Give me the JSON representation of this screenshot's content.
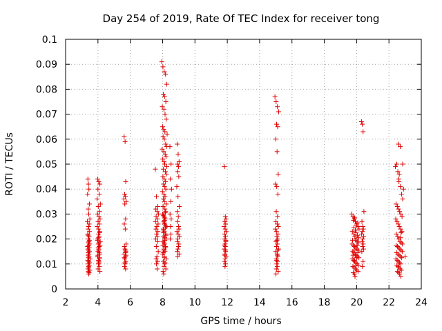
{
  "chart_data": {
    "type": "scatter",
    "title": "Day 254 of 2019, Rate Of TEC Index for receiver tong",
    "xlabel": "GPS time / hours",
    "ylabel": "ROTI / TECUs",
    "xlim": [
      2,
      24
    ],
    "ylim": [
      0,
      0.1
    ],
    "xticks": [
      "2",
      "4",
      "6",
      "8",
      "10",
      "12",
      "14",
      "16",
      "18",
      "20",
      "22",
      "24"
    ],
    "yticks": [
      "0",
      "0.01",
      "0.02",
      "0.03",
      "0.04",
      "0.05",
      "0.06",
      "0.07",
      "0.08",
      "0.09",
      "0.1"
    ],
    "grid": true,
    "marker": "+",
    "color": "#e00000",
    "series": [
      {
        "name": "ROTI",
        "x": [
          3.38,
          3.41,
          3.44,
          3.36,
          3.47,
          3.4,
          3.43,
          3.5,
          3.35,
          3.46,
          3.42,
          3.39,
          3.48,
          3.37,
          3.45,
          3.41,
          3.44,
          3.4,
          3.49,
          3.43,
          3.36,
          3.46,
          3.38,
          3.42,
          3.47,
          3.4,
          3.44,
          3.39,
          3.45,
          3.41,
          3.52,
          3.37,
          3.43,
          3.48,
          3.4,
          3.46,
          3.42,
          3.44,
          3.38,
          3.5,
          3.41,
          3.45,
          3.43,
          3.39,
          3.47,
          3.98,
          4.05,
          4.12,
          4.0,
          4.08,
          3.95,
          4.15,
          4.02,
          4.1,
          3.97,
          4.06,
          4.13,
          4.01,
          4.09,
          3.96,
          4.04,
          4.11,
          4.03,
          4.07,
          3.99,
          4.14,
          4.02,
          4.08,
          4.05,
          4.0,
          4.12,
          3.98,
          4.1,
          4.06,
          4.03,
          4.09,
          4.01,
          4.11,
          4.04,
          3.97,
          4.07,
          4.13,
          4.02,
          4.05,
          4.08,
          4.0,
          4.1,
          4.03,
          4.06,
          4.12,
          5.62,
          5.68,
          5.72,
          5.65,
          5.7,
          5.6,
          5.75,
          5.66,
          5.71,
          5.63,
          5.69,
          5.74,
          5.64,
          5.67,
          5.73,
          5.61,
          5.7,
          5.66,
          5.72,
          5.68,
          5.65,
          5.71,
          5.69,
          5.63,
          5.67,
          5.74,
          5.7,
          7.55,
          7.62,
          7.7,
          7.58,
          7.66,
          7.74,
          7.6,
          7.68,
          7.56,
          7.72,
          7.64,
          7.59,
          7.71,
          7.63,
          7.67,
          7.57,
          7.69,
          7.61,
          7.73,
          7.65,
          7.6,
          7.7,
          7.62,
          7.66,
          7.95,
          8.02,
          8.1,
          8.18,
          8.25,
          8.05,
          8.12,
          8.2,
          7.98,
          8.08,
          8.15,
          8.22,
          8.0,
          8.06,
          8.14,
          8.28,
          8.03,
          8.11,
          8.19,
          8.24,
          7.97,
          8.07,
          8.16,
          8.21,
          8.01,
          8.09,
          8.13,
          8.26,
          8.04,
          8.17,
          8.23,
          8.02,
          8.1,
          8.18,
          8.06,
          8.12,
          8.2,
          7.99,
          8.08,
          8.15,
          8.05,
          8.11,
          8.22,
          8.03,
          8.14,
          8.19,
          8.0,
          8.09,
          8.16,
          8.07,
          8.13,
          8.25,
          8.04,
          8.1,
          8.18,
          8.06,
          8.21,
          8.02,
          8.12,
          8.17,
          8.08,
          8.15,
          8.01,
          8.11,
          8.23,
          8.05,
          8.14,
          8.09,
          8.2,
          8.03,
          8.07,
          8.16,
          8.12,
          8.1,
          8.18,
          8.06,
          8.13,
          8.08,
          8.19,
          8.04,
          8.11,
          8.15,
          8.09,
          8.02,
          8.14,
          8.21,
          8.07,
          8.17,
          8.12,
          8.05,
          8.45,
          8.52,
          8.48,
          8.55,
          8.5,
          8.46,
          8.53,
          8.49,
          8.51,
          8.47,
          8.9,
          8.96,
          9.02,
          8.92,
          8.98,
          8.94,
          9.0,
          8.88,
          8.95,
          9.03,
          8.91,
          8.97,
          8.93,
          8.99,
          9.01,
          8.89,
          8.96,
          9.04,
          8.94,
          8.92,
          9.0,
          8.98,
          8.95,
          8.9,
          9.02,
          8.93,
          11.82,
          11.88,
          11.92,
          11.85,
          11.9,
          11.8,
          11.87,
          11.93,
          11.84,
          11.89,
          11.83,
          11.91,
          11.86,
          11.88,
          11.81,
          11.9,
          11.85,
          11.92,
          11.87,
          11.84,
          11.89,
          11.86,
          11.91,
          11.83,
          11.88,
          11.85,
          14.95,
          15.02,
          15.1,
          15.18,
          15.05,
          15.12,
          15.0,
          15.08,
          15.15,
          14.98,
          15.06,
          15.13,
          15.03,
          15.11,
          15.01,
          15.09,
          15.16,
          14.97,
          15.04,
          15.14,
          15.07,
          15.12,
          15.02,
          15.1,
          15.05,
          15.17,
          15.0,
          15.08,
          15.13,
          15.03,
          15.11,
          15.06,
          15.09,
          15.04,
          15.15,
          15.01,
          15.07,
          15.12,
          15.1,
          15.05,
          19.7,
          19.78,
          19.85,
          19.92,
          20.0,
          20.08,
          20.15,
          19.74,
          19.82,
          19.89,
          19.96,
          20.04,
          20.12,
          19.72,
          19.8,
          19.87,
          19.94,
          20.02,
          20.1,
          19.76,
          19.84,
          19.91,
          19.98,
          20.06,
          20.14,
          19.73,
          19.81,
          19.88,
          19.95,
          20.03,
          20.11,
          19.77,
          19.85,
          19.93,
          20.01,
          20.09,
          19.79,
          19.86,
          19.9,
          19.97,
          20.05,
          20.13,
          19.75,
          19.83,
          19.92,
          19.99,
          20.07,
          19.81,
          19.88,
          19.94,
          20.02,
          20.1,
          19.78,
          19.86,
          19.96,
          20.04,
          19.84,
          19.91,
          20.0,
          20.08,
          20.3,
          20.35,
          20.4,
          20.45,
          20.33,
          20.38,
          20.42,
          20.36,
          20.31,
          20.44,
          20.39,
          20.34,
          20.41,
          20.37,
          20.43,
          20.32,
          20.4,
          20.36,
          22.4,
          22.48,
          22.55,
          22.62,
          22.7,
          22.78,
          22.85,
          22.44,
          22.52,
          22.59,
          22.66,
          22.74,
          22.81,
          22.42,
          22.5,
          22.57,
          22.64,
          22.72,
          22.8,
          22.46,
          22.54,
          22.61,
          22.68,
          22.76,
          22.83,
          22.45,
          22.53,
          22.6,
          22.67,
          22.75,
          22.82,
          22.47,
          22.55,
          22.63,
          22.71,
          22.79,
          22.43,
          22.51,
          22.58,
          22.65,
          22.73,
          22.49,
          22.56,
          22.62,
          22.69,
          22.77,
          22.52,
          22.59,
          22.66,
          22.74,
          22.58,
          22.7,
          22.64,
          22.61,
          22.85,
          22.9,
          23.0,
          22.75,
          22.72
        ],
        "y": [
          0.044,
          0.042,
          0.04,
          0.038,
          0.034,
          0.032,
          0.03,
          0.028,
          0.027,
          0.026,
          0.025,
          0.024,
          0.023,
          0.022,
          0.021,
          0.02,
          0.019,
          0.0185,
          0.018,
          0.0175,
          0.017,
          0.0165,
          0.016,
          0.0155,
          0.015,
          0.0145,
          0.014,
          0.0135,
          0.013,
          0.0125,
          0.012,
          0.0115,
          0.011,
          0.0105,
          0.01,
          0.0095,
          0.009,
          0.0085,
          0.008,
          0.0075,
          0.007,
          0.0065,
          0.006,
          0.0215,
          0.0195,
          0.044,
          0.043,
          0.042,
          0.04,
          0.038,
          0.036,
          0.034,
          0.033,
          0.031,
          0.03,
          0.029,
          0.028,
          0.027,
          0.026,
          0.025,
          0.024,
          0.023,
          0.022,
          0.021,
          0.02,
          0.019,
          0.018,
          0.017,
          0.016,
          0.015,
          0.014,
          0.013,
          0.012,
          0.011,
          0.01,
          0.009,
          0.008,
          0.0225,
          0.0205,
          0.0195,
          0.0185,
          0.0175,
          0.0165,
          0.0155,
          0.0145,
          0.0135,
          0.0125,
          0.0115,
          0.0105,
          0.007,
          0.061,
          0.059,
          0.043,
          0.038,
          0.037,
          0.036,
          0.035,
          0.034,
          0.028,
          0.026,
          0.024,
          0.018,
          0.017,
          0.016,
          0.015,
          0.014,
          0.013,
          0.012,
          0.011,
          0.01,
          0.009,
          0.008,
          0.0155,
          0.0125,
          0.0105,
          0.0135,
          0.0145,
          0.048,
          0.037,
          0.033,
          0.032,
          0.031,
          0.03,
          0.029,
          0.028,
          0.027,
          0.026,
          0.025,
          0.024,
          0.023,
          0.022,
          0.021,
          0.02,
          0.019,
          0.017,
          0.015,
          0.013,
          0.012,
          0.011,
          0.01,
          0.008,
          0.091,
          0.089,
          0.087,
          0.086,
          0.082,
          0.078,
          0.077,
          0.075,
          0.073,
          0.072,
          0.07,
          0.068,
          0.065,
          0.064,
          0.063,
          0.062,
          0.061,
          0.06,
          0.058,
          0.057,
          0.056,
          0.055,
          0.054,
          0.053,
          0.052,
          0.051,
          0.05,
          0.049,
          0.048,
          0.047,
          0.046,
          0.045,
          0.044,
          0.043,
          0.042,
          0.041,
          0.04,
          0.039,
          0.038,
          0.037,
          0.036,
          0.035,
          0.034,
          0.033,
          0.032,
          0.031,
          0.03,
          0.029,
          0.028,
          0.027,
          0.026,
          0.025,
          0.024,
          0.023,
          0.022,
          0.021,
          0.02,
          0.019,
          0.018,
          0.017,
          0.016,
          0.015,
          0.014,
          0.013,
          0.012,
          0.011,
          0.01,
          0.009,
          0.008,
          0.007,
          0.006,
          0.0305,
          0.0285,
          0.0265,
          0.0245,
          0.0225,
          0.0205,
          0.0185,
          0.0165,
          0.0145,
          0.0125,
          0.0105,
          0.0155,
          0.0175,
          0.0195,
          0.0215,
          0.0235,
          0.0255,
          0.0275,
          0.0295,
          0.057,
          0.05,
          0.044,
          0.04,
          0.035,
          0.03,
          0.028,
          0.025,
          0.022,
          0.02,
          0.058,
          0.054,
          0.051,
          0.05,
          0.049,
          0.047,
          0.045,
          0.041,
          0.037,
          0.033,
          0.031,
          0.029,
          0.027,
          0.025,
          0.024,
          0.023,
          0.022,
          0.021,
          0.02,
          0.019,
          0.018,
          0.017,
          0.016,
          0.015,
          0.014,
          0.013,
          0.049,
          0.029,
          0.028,
          0.027,
          0.026,
          0.025,
          0.024,
          0.023,
          0.022,
          0.021,
          0.02,
          0.019,
          0.018,
          0.017,
          0.016,
          0.015,
          0.014,
          0.013,
          0.012,
          0.011,
          0.01,
          0.009,
          0.0195,
          0.0175,
          0.0155,
          0.0135,
          0.077,
          0.075,
          0.073,
          0.071,
          0.066,
          0.065,
          0.06,
          0.055,
          0.046,
          0.042,
          0.041,
          0.038,
          0.031,
          0.029,
          0.027,
          0.026,
          0.025,
          0.024,
          0.023,
          0.022,
          0.021,
          0.02,
          0.019,
          0.018,
          0.017,
          0.016,
          0.015,
          0.014,
          0.013,
          0.012,
          0.011,
          0.01,
          0.009,
          0.008,
          0.007,
          0.006,
          0.0195,
          0.0155,
          0.0135,
          0.0115,
          0.03,
          0.029,
          0.028,
          0.027,
          0.026,
          0.025,
          0.024,
          0.023,
          0.022,
          0.021,
          0.02,
          0.019,
          0.0185,
          0.018,
          0.0175,
          0.017,
          0.0165,
          0.016,
          0.0155,
          0.015,
          0.0145,
          0.014,
          0.0135,
          0.013,
          0.0125,
          0.012,
          0.0115,
          0.011,
          0.0105,
          0.01,
          0.0095,
          0.009,
          0.0085,
          0.008,
          0.0075,
          0.007,
          0.0065,
          0.006,
          0.005,
          0.0225,
          0.0215,
          0.0205,
          0.0195,
          0.0245,
          0.0235,
          0.0255,
          0.0265,
          0.0275,
          0.0285,
          0.0195,
          0.0175,
          0.0155,
          0.0135,
          0.0115,
          0.0095,
          0.0175,
          0.0155,
          0.0135,
          0.0125,
          0.0145,
          0.067,
          0.066,
          0.063,
          0.031,
          0.027,
          0.025,
          0.024,
          0.023,
          0.022,
          0.021,
          0.02,
          0.019,
          0.018,
          0.017,
          0.016,
          0.015,
          0.011,
          0.009,
          0.049,
          0.05,
          0.047,
          0.043,
          0.041,
          0.038,
          0.036,
          0.034,
          0.033,
          0.032,
          0.031,
          0.03,
          0.029,
          0.028,
          0.027,
          0.026,
          0.025,
          0.024,
          0.023,
          0.022,
          0.021,
          0.02,
          0.019,
          0.0185,
          0.018,
          0.0175,
          0.017,
          0.0165,
          0.016,
          0.0155,
          0.015,
          0.0145,
          0.014,
          0.0135,
          0.013,
          0.0125,
          0.012,
          0.0115,
          0.011,
          0.0105,
          0.01,
          0.0095,
          0.009,
          0.0085,
          0.008,
          0.0075,
          0.007,
          0.0065,
          0.006,
          0.005,
          0.058,
          0.057,
          0.046,
          0.044,
          0.05,
          0.04,
          0.013,
          0.0225,
          0.0205
        ]
      }
    ]
  }
}
